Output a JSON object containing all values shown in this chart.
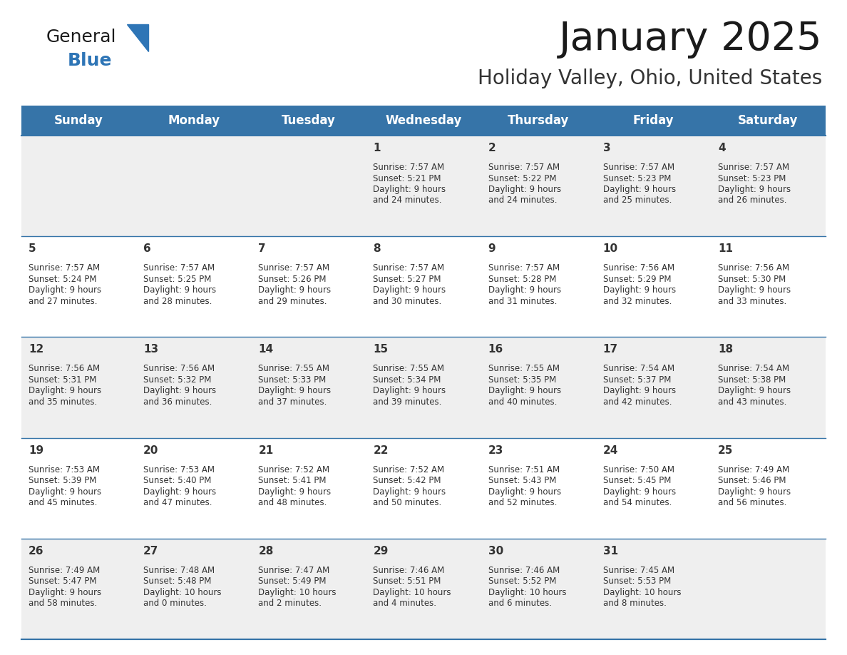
{
  "title": "January 2025",
  "subtitle": "Holiday Valley, Ohio, United States",
  "header_color": "#3674a8",
  "header_text_color": "#FFFFFF",
  "day_names": [
    "Sunday",
    "Monday",
    "Tuesday",
    "Wednesday",
    "Thursday",
    "Friday",
    "Saturday"
  ],
  "bg_color": "#FFFFFF",
  "cell_bg_even": "#EFEFEF",
  "cell_bg_odd": "#FFFFFF",
  "text_color": "#333333",
  "separator_color": "#3674a8",
  "title_fontsize": 40,
  "subtitle_fontsize": 20,
  "header_fontsize": 12,
  "day_num_fontsize": 11,
  "cell_text_fontsize": 8.5,
  "calendar_data": [
    [
      {
        "day": "",
        "sunrise": "",
        "sunset": "",
        "daylight": ""
      },
      {
        "day": "",
        "sunrise": "",
        "sunset": "",
        "daylight": ""
      },
      {
        "day": "",
        "sunrise": "",
        "sunset": "",
        "daylight": ""
      },
      {
        "day": "1",
        "sunrise": "7:57 AM",
        "sunset": "5:21 PM",
        "daylight": "9 hours and 24 minutes."
      },
      {
        "day": "2",
        "sunrise": "7:57 AM",
        "sunset": "5:22 PM",
        "daylight": "9 hours and 24 minutes."
      },
      {
        "day": "3",
        "sunrise": "7:57 AM",
        "sunset": "5:23 PM",
        "daylight": "9 hours and 25 minutes."
      },
      {
        "day": "4",
        "sunrise": "7:57 AM",
        "sunset": "5:23 PM",
        "daylight": "9 hours and 26 minutes."
      }
    ],
    [
      {
        "day": "5",
        "sunrise": "7:57 AM",
        "sunset": "5:24 PM",
        "daylight": "9 hours and 27 minutes."
      },
      {
        "day": "6",
        "sunrise": "7:57 AM",
        "sunset": "5:25 PM",
        "daylight": "9 hours and 28 minutes."
      },
      {
        "day": "7",
        "sunrise": "7:57 AM",
        "sunset": "5:26 PM",
        "daylight": "9 hours and 29 minutes."
      },
      {
        "day": "8",
        "sunrise": "7:57 AM",
        "sunset": "5:27 PM",
        "daylight": "9 hours and 30 minutes."
      },
      {
        "day": "9",
        "sunrise": "7:57 AM",
        "sunset": "5:28 PM",
        "daylight": "9 hours and 31 minutes."
      },
      {
        "day": "10",
        "sunrise": "7:56 AM",
        "sunset": "5:29 PM",
        "daylight": "9 hours and 32 minutes."
      },
      {
        "day": "11",
        "sunrise": "7:56 AM",
        "sunset": "5:30 PM",
        "daylight": "9 hours and 33 minutes."
      }
    ],
    [
      {
        "day": "12",
        "sunrise": "7:56 AM",
        "sunset": "5:31 PM",
        "daylight": "9 hours and 35 minutes."
      },
      {
        "day": "13",
        "sunrise": "7:56 AM",
        "sunset": "5:32 PM",
        "daylight": "9 hours and 36 minutes."
      },
      {
        "day": "14",
        "sunrise": "7:55 AM",
        "sunset": "5:33 PM",
        "daylight": "9 hours and 37 minutes."
      },
      {
        "day": "15",
        "sunrise": "7:55 AM",
        "sunset": "5:34 PM",
        "daylight": "9 hours and 39 minutes."
      },
      {
        "day": "16",
        "sunrise": "7:55 AM",
        "sunset": "5:35 PM",
        "daylight": "9 hours and 40 minutes."
      },
      {
        "day": "17",
        "sunrise": "7:54 AM",
        "sunset": "5:37 PM",
        "daylight": "9 hours and 42 minutes."
      },
      {
        "day": "18",
        "sunrise": "7:54 AM",
        "sunset": "5:38 PM",
        "daylight": "9 hours and 43 minutes."
      }
    ],
    [
      {
        "day": "19",
        "sunrise": "7:53 AM",
        "sunset": "5:39 PM",
        "daylight": "9 hours and 45 minutes."
      },
      {
        "day": "20",
        "sunrise": "7:53 AM",
        "sunset": "5:40 PM",
        "daylight": "9 hours and 47 minutes."
      },
      {
        "day": "21",
        "sunrise": "7:52 AM",
        "sunset": "5:41 PM",
        "daylight": "9 hours and 48 minutes."
      },
      {
        "day": "22",
        "sunrise": "7:52 AM",
        "sunset": "5:42 PM",
        "daylight": "9 hours and 50 minutes."
      },
      {
        "day": "23",
        "sunrise": "7:51 AM",
        "sunset": "5:43 PM",
        "daylight": "9 hours and 52 minutes."
      },
      {
        "day": "24",
        "sunrise": "7:50 AM",
        "sunset": "5:45 PM",
        "daylight": "9 hours and 54 minutes."
      },
      {
        "day": "25",
        "sunrise": "7:49 AM",
        "sunset": "5:46 PM",
        "daylight": "9 hours and 56 minutes."
      }
    ],
    [
      {
        "day": "26",
        "sunrise": "7:49 AM",
        "sunset": "5:47 PM",
        "daylight": "9 hours and 58 minutes."
      },
      {
        "day": "27",
        "sunrise": "7:48 AM",
        "sunset": "5:48 PM",
        "daylight": "10 hours and 0 minutes."
      },
      {
        "day": "28",
        "sunrise": "7:47 AM",
        "sunset": "5:49 PM",
        "daylight": "10 hours and 2 minutes."
      },
      {
        "day": "29",
        "sunrise": "7:46 AM",
        "sunset": "5:51 PM",
        "daylight": "10 hours and 4 minutes."
      },
      {
        "day": "30",
        "sunrise": "7:46 AM",
        "sunset": "5:52 PM",
        "daylight": "10 hours and 6 minutes."
      },
      {
        "day": "31",
        "sunrise": "7:45 AM",
        "sunset": "5:53 PM",
        "daylight": "10 hours and 8 minutes."
      },
      {
        "day": "",
        "sunrise": "",
        "sunset": "",
        "daylight": ""
      }
    ]
  ]
}
